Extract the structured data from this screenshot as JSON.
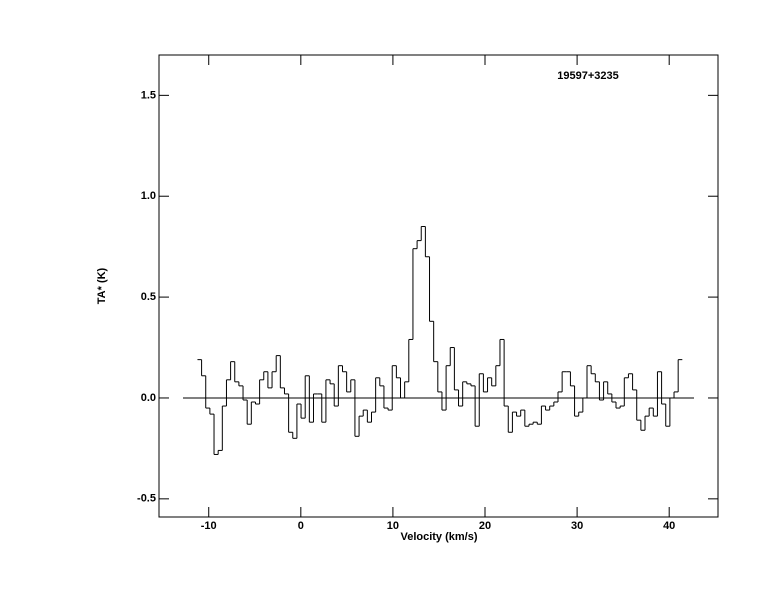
{
  "chart_data": {
    "type": "step",
    "title": "19597+3235",
    "xlabel": "Velocity (km/s)",
    "ylabel": "TA* (K)",
    "xlim": [
      -15.4,
      45.3
    ],
    "ylim": [
      -0.59,
      1.7
    ],
    "xticks": [
      -10,
      0,
      10,
      20,
      30,
      40
    ],
    "yticks": [
      {
        "value": -0.5,
        "label": "-0.5"
      },
      {
        "value": 0,
        "label": "0.0"
      },
      {
        "value": 0.5,
        "label": "0.5"
      },
      {
        "value": 1,
        "label": "1.0"
      },
      {
        "value": 1.5,
        "label": "1.5"
      }
    ],
    "color": "#000000",
    "x": [
      -11.0,
      -10.55,
      -10.1,
      -9.65,
      -9.2,
      -8.75,
      -8.3,
      -7.85,
      -7.4,
      -6.95,
      -6.5,
      -6.05,
      -5.6,
      -5.15,
      -4.7,
      -4.25,
      -3.8,
      -3.35,
      -2.9,
      -2.45,
      -2.0,
      -1.55,
      -1.1,
      -0.65,
      -0.2,
      0.25,
      0.7,
      1.15,
      1.6,
      2.05,
      2.5,
      2.95,
      3.4,
      3.85,
      4.3,
      4.75,
      5.2,
      5.65,
      6.1,
      6.55,
      7.0,
      7.45,
      7.9,
      8.35,
      8.8,
      9.25,
      9.7,
      10.15,
      10.6,
      11.05,
      11.5,
      11.95,
      12.4,
      12.85,
      13.3,
      13.75,
      14.2,
      14.65,
      15.1,
      15.55,
      16.0,
      16.45,
      16.9,
      17.35,
      17.8,
      18.25,
      18.7,
      19.15,
      19.6,
      20.05,
      20.5,
      20.95,
      21.4,
      21.85,
      22.3,
      22.75,
      23.2,
      23.65,
      24.1,
      24.55,
      25.0,
      25.45,
      25.9,
      26.35,
      26.8,
      27.25,
      27.7,
      28.15,
      28.6,
      29.05,
      29.5,
      29.95,
      30.4,
      30.85,
      31.3,
      31.75,
      32.2,
      32.65,
      33.1,
      33.55,
      34.0,
      34.45,
      34.9,
      35.35,
      35.8,
      36.25,
      36.7,
      37.15,
      37.6,
      38.05,
      38.5,
      38.95,
      39.4,
      39.85,
      40.3,
      40.75,
      41.2
    ],
    "values": [
      0.19,
      0.11,
      -0.05,
      -0.08,
      -0.28,
      -0.26,
      -0.04,
      0.09,
      0.18,
      0.08,
      0.06,
      -0.01,
      -0.13,
      -0.02,
      -0.03,
      0.09,
      0.13,
      0.05,
      0.13,
      0.21,
      0.05,
      0.02,
      -0.17,
      -0.2,
      -0.03,
      -0.1,
      0.11,
      -0.12,
      0.02,
      0.02,
      -0.12,
      0.09,
      0.07,
      -0.04,
      0.16,
      0.13,
      0.03,
      0.09,
      -0.19,
      -0.09,
      -0.06,
      -0.12,
      -0.07,
      0.1,
      0.06,
      -0.05,
      -0.06,
      0.16,
      0.1,
      0.0,
      0.08,
      0.29,
      0.74,
      0.78,
      0.85,
      0.7,
      0.38,
      0.18,
      0.03,
      -0.06,
      0.16,
      0.25,
      0.04,
      -0.04,
      0.08,
      0.07,
      0.06,
      -0.14,
      0.12,
      0.03,
      0.1,
      0.06,
      0.16,
      0.29,
      -0.04,
      -0.17,
      -0.07,
      -0.09,
      -0.06,
      -0.14,
      -0.13,
      -0.12,
      -0.13,
      -0.04,
      -0.06,
      -0.04,
      -0.02,
      0.03,
      0.13,
      0.13,
      0.06,
      -0.09,
      -0.07,
      0.0,
      0.16,
      0.12,
      0.08,
      -0.01,
      0.08,
      0.02,
      -0.02,
      -0.05,
      -0.04,
      0.1,
      0.12,
      0.04,
      -0.11,
      -0.16,
      -0.09,
      -0.05,
      -0.09,
      0.13,
      -0.03,
      -0.14,
      0.0,
      0.03,
      0.19
    ]
  }
}
